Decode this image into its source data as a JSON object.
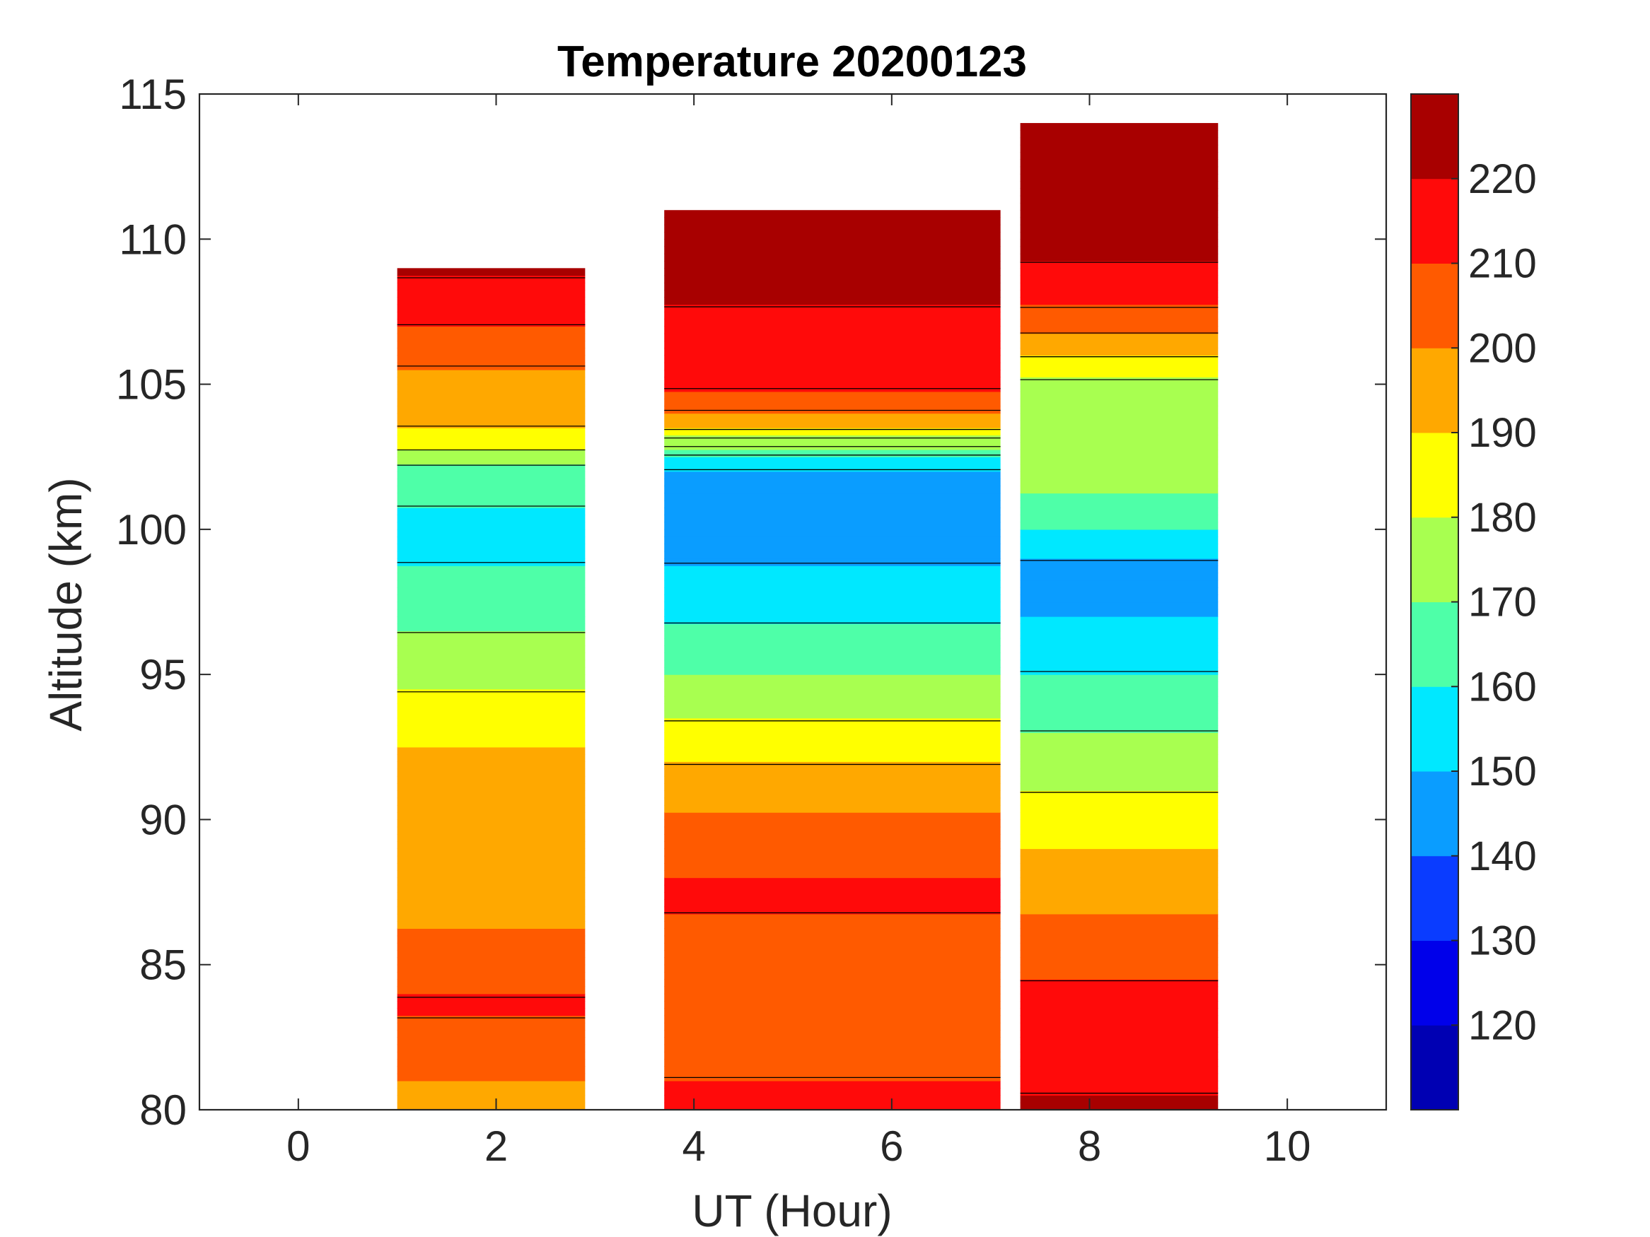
{
  "chart_data": {
    "type": "heatmap",
    "title": "Temperature 20200123",
    "xlabel": "UT (Hour)",
    "ylabel": "Altitude (km)",
    "xlim": [
      -1,
      11
    ],
    "ylim": [
      80,
      115
    ],
    "xticks": [
      0,
      2,
      4,
      6,
      8,
      10
    ],
    "yticks": [
      80,
      85,
      90,
      95,
      100,
      105,
      110,
      115
    ],
    "colorbar": {
      "range": [
        110,
        230
      ],
      "ticks": [
        120,
        130,
        140,
        150,
        160,
        170,
        180,
        190,
        200,
        210,
        220
      ],
      "levels": [
        {
          "from": 110,
          "to": 120,
          "color": "#0000b3"
        },
        {
          "from": 120,
          "to": 130,
          "color": "#0000ea"
        },
        {
          "from": 130,
          "to": 140,
          "color": "#0a3cff"
        },
        {
          "from": 140,
          "to": 150,
          "color": "#0a9dff"
        },
        {
          "from": 150,
          "to": 160,
          "color": "#00e8ff"
        },
        {
          "from": 160,
          "to": 170,
          "color": "#4effa8"
        },
        {
          "from": 170,
          "to": 180,
          "color": "#a8ff50"
        },
        {
          "from": 180,
          "to": 190,
          "color": "#ffff00"
        },
        {
          "from": 190,
          "to": 200,
          "color": "#ffa800"
        },
        {
          "from": 200,
          "to": 210,
          "color": "#ff5a00"
        },
        {
          "from": 210,
          "to": 220,
          "color": "#ff0a0a"
        },
        {
          "from": 220,
          "to": 230,
          "color": "#a80000"
        }
      ]
    },
    "segments": [
      {
        "name": "segment-1",
        "x_start": 1.0,
        "x_end": 2.9,
        "profile": [
          {
            "alt": 80,
            "temp": 197
          },
          {
            "alt": 82,
            "temp": 203
          },
          {
            "alt": 83.5,
            "temp": 212
          },
          {
            "alt": 85,
            "temp": 204
          },
          {
            "alt": 87.5,
            "temp": 196
          },
          {
            "alt": 90,
            "temp": 195
          },
          {
            "alt": 92.5,
            "temp": 190
          },
          {
            "alt": 94,
            "temp": 182
          },
          {
            "alt": 96,
            "temp": 172
          },
          {
            "alt": 98,
            "temp": 163
          },
          {
            "alt": 100,
            "temp": 156
          },
          {
            "alt": 102,
            "temp": 166
          },
          {
            "alt": 103,
            "temp": 185
          },
          {
            "alt": 104,
            "temp": 194
          },
          {
            "alt": 105,
            "temp": 195
          },
          {
            "alt": 106,
            "temp": 203
          },
          {
            "alt": 107.5,
            "temp": 213
          },
          {
            "alt": 109,
            "temp": 222
          }
        ]
      },
      {
        "name": "segment-2",
        "x_start": 3.7,
        "x_end": 7.1,
        "profile": [
          {
            "alt": 80,
            "temp": 215
          },
          {
            "alt": 82,
            "temp": 206
          },
          {
            "alt": 85,
            "temp": 205
          },
          {
            "alt": 87.5,
            "temp": 212
          },
          {
            "alt": 89.5,
            "temp": 204
          },
          {
            "alt": 91,
            "temp": 196
          },
          {
            "alt": 92.5,
            "temp": 186
          },
          {
            "alt": 94,
            "temp": 176
          },
          {
            "alt": 95.5,
            "temp": 167
          },
          {
            "alt": 97.5,
            "temp": 156
          },
          {
            "alt": 99.5,
            "temp": 147
          },
          {
            "alt": 101.5,
            "temp": 140
          },
          {
            "alt": 102.5,
            "temp": 158
          },
          {
            "alt": 103.5,
            "temp": 192
          },
          {
            "alt": 105,
            "temp": 212
          },
          {
            "alt": 107,
            "temp": 218
          },
          {
            "alt": 109,
            "temp": 224
          },
          {
            "alt": 111,
            "temp": 226
          }
        ]
      },
      {
        "name": "segment-3",
        "x_start": 7.3,
        "x_end": 9.3,
        "profile": [
          {
            "alt": 80,
            "temp": 222
          },
          {
            "alt": 82,
            "temp": 215
          },
          {
            "alt": 84,
            "temp": 212
          },
          {
            "alt": 86,
            "temp": 203
          },
          {
            "alt": 88,
            "temp": 195
          },
          {
            "alt": 90,
            "temp": 185
          },
          {
            "alt": 91.5,
            "temp": 177
          },
          {
            "alt": 93.5,
            "temp": 168
          },
          {
            "alt": 95.5,
            "temp": 158
          },
          {
            "alt": 97,
            "temp": 150
          },
          {
            "alt": 98.5,
            "temp": 146
          },
          {
            "alt": 100,
            "temp": 160
          },
          {
            "alt": 101.5,
            "temp": 172
          },
          {
            "alt": 103,
            "temp": 176
          },
          {
            "alt": 105,
            "temp": 178
          },
          {
            "alt": 106.5,
            "temp": 197
          },
          {
            "alt": 108,
            "temp": 214
          },
          {
            "alt": 110,
            "temp": 224
          },
          {
            "alt": 114,
            "temp": 226
          }
        ]
      }
    ]
  }
}
